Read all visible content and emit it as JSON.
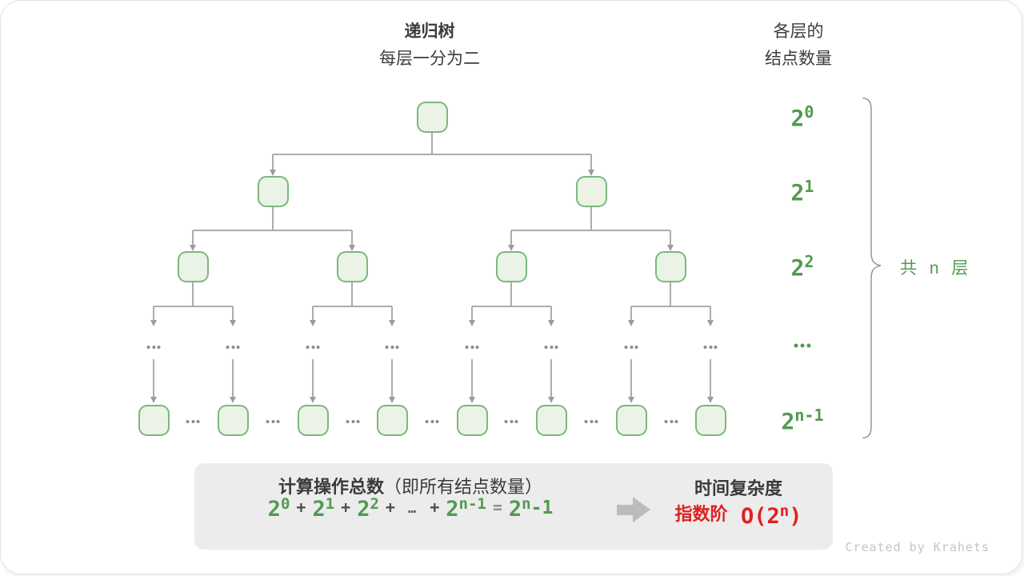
{
  "header": {
    "title": "递归树",
    "subtitle": "每层一分为二"
  },
  "right_header": {
    "line1": "各层的",
    "line2": "结点数量"
  },
  "levels": [
    {
      "base": "2",
      "sup": "0"
    },
    {
      "base": "2",
      "sup": "1"
    },
    {
      "base": "2",
      "sup": "2"
    },
    {
      "ellipsis": true
    },
    {
      "base": "2",
      "sup": "n-1"
    }
  ],
  "brace_label": "共 n 层",
  "summary_box": {
    "heading_bold": "计算操作总数",
    "heading_normal": "（即所有结点数量）",
    "formula": [
      {
        "base": "2",
        "sup": "0"
      },
      {
        "op": "+"
      },
      {
        "base": "2",
        "sup": "1"
      },
      {
        "op": "+"
      },
      {
        "base": "2",
        "sup": "2"
      },
      {
        "op": "+"
      },
      {
        "op": "…"
      },
      {
        "op": "+"
      },
      {
        "base": "2",
        "sup": "n-1"
      },
      {
        "op": "="
      },
      {
        "base": "2",
        "sup": "n",
        "tail": "-1"
      }
    ],
    "result_title": "时间复杂度",
    "result_label": "指数阶",
    "result_formula": {
      "pre": "O(2",
      "sup": "n",
      "post": ")"
    }
  },
  "watermark": "Created by Krahets",
  "colors": {
    "green_text": "#519a51",
    "node_border": "#7cb87c",
    "node_fill": "#eaf3e5",
    "line_gray": "#adadad",
    "arrow_gray": "#9c9c9c",
    "red": "#e02020",
    "box_bg": "#ececec",
    "dark_text": "#3c3c3c",
    "watermark_gray": "#c4c4c4"
  }
}
